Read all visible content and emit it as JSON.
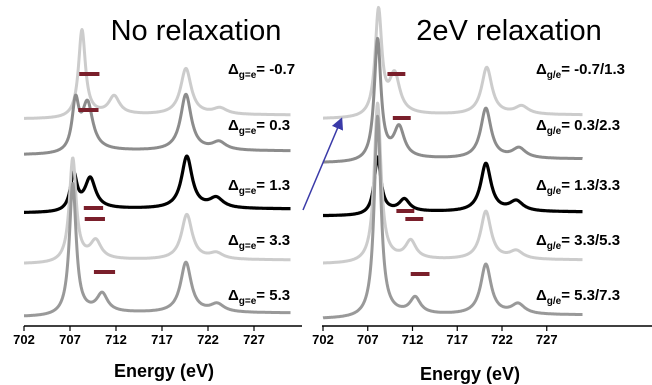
{
  "chart_data": [
    {
      "type": "line",
      "title": "No relaxation",
      "xlabel": "Energy (eV)",
      "ylabel": "",
      "xticks": [
        "702",
        "707",
        "712",
        "717",
        "722",
        "727"
      ],
      "xlim": [
        702,
        731
      ],
      "series": [
        {
          "label_symbol": "Δ",
          "label_subscript": "g=e",
          "label_value": "= -0.7",
          "color": "#cccccc",
          "peaks_eV": [
            708.3,
            711.8,
            719.6,
            723.3
          ],
          "bar_eV": [
            708.0,
            710.2
          ]
        },
        {
          "label_symbol": "Δ",
          "label_subscript": "g=e",
          "label_value": "= 0.3",
          "color": "#8c8c8c",
          "peaks_eV": [
            707.6,
            708.9,
            719.6,
            723.2
          ],
          "bar_eV": [
            707.9,
            710.1
          ]
        },
        {
          "label_symbol": "Δ",
          "label_subscript": "g=e",
          "label_value": "= 1.3",
          "color": "#000000",
          "peaks_eV": [
            707.4,
            709.2,
            719.7,
            722.9
          ],
          "bar_eV": [
            708.5,
            710.6
          ]
        },
        {
          "label_symbol": "Δ",
          "label_subscript": "g=e",
          "label_value": "= 3.3",
          "color": "#cccccc",
          "peaks_eV": [
            707.3,
            709.8,
            719.7,
            722.9
          ],
          "bar_eV": [
            708.6,
            710.8
          ]
        },
        {
          "label_symbol": "Δ",
          "label_subscript": "g=e",
          "label_value": "= 5.3",
          "color": "#999999",
          "peaks_eV": [
            707.3,
            710.5,
            719.6,
            723.0
          ],
          "bar_eV": [
            709.6,
            711.9
          ]
        }
      ],
      "bar_color": "#7a1f2b"
    },
    {
      "type": "line",
      "title": "2eV relaxation",
      "xlabel": "Energy (eV)",
      "ylabel": "",
      "xticks": [
        "702",
        "707",
        "712",
        "717",
        "722",
        "727"
      ],
      "xlim": [
        702,
        731
      ],
      "series": [
        {
          "label_symbol": "Δ",
          "label_subscript": "g/e",
          "label_value": "= -0.7/1.3",
          "color": "#cccccc",
          "peaks_eV": [
            708.2,
            710.0,
            720.3,
            724.2
          ],
          "bar_eV": [
            709.2,
            711.2
          ]
        },
        {
          "label_symbol": "Δ",
          "label_subscript": "g/e",
          "label_value": "= 0.3/2.3",
          "color": "#8c8c8c",
          "peaks_eV": [
            708.1,
            710.5,
            720.2,
            723.9
          ],
          "bar_eV": [
            709.8,
            711.8
          ]
        },
        {
          "label_symbol": "Δ",
          "label_subscript": "g/e",
          "label_value": "= 1.3/3.3",
          "color": "#000000",
          "peaks_eV": [
            708.1,
            711.1,
            720.2,
            723.6
          ],
          "bar_eV": [
            710.2,
            712.2
          ]
        },
        {
          "label_symbol": "Δ",
          "label_subscript": "g/e",
          "label_value": "= 3.3/5.3",
          "color": "#cccccc",
          "peaks_eV": [
            708.1,
            711.8,
            720.2,
            723.6
          ],
          "bar_eV": [
            711.2,
            713.2
          ]
        },
        {
          "label_symbol": "Δ",
          "label_subscript": "g/e",
          "label_value": "= 5.3/7.3",
          "color": "#999999",
          "peaks_eV": [
            708.1,
            712.3,
            720.2,
            723.8
          ],
          "bar_eV": [
            711.8,
            713.9
          ]
        }
      ],
      "bar_color": "#7a1f2b"
    }
  ],
  "annotation": {
    "type": "arrow",
    "from": "Δg=e = 1.3 (No relaxation)",
    "to": "Δg/e = -0.7/1.3 (2eV relaxation)",
    "color": "#3a3aa8"
  }
}
